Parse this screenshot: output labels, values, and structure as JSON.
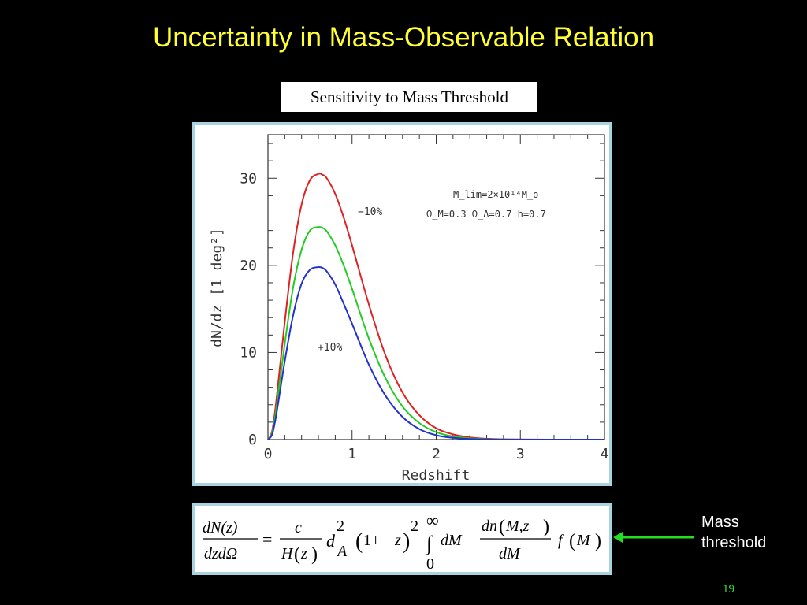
{
  "slide": {
    "title": "Uncertainty in Mass-Observable Relation",
    "subtitle": "Sensitivity to Mass Threshold",
    "page_number": "19",
    "annotation": "Mass threshold",
    "annotation_line1": "Mass",
    "annotation_line2": "threshold"
  },
  "colors": {
    "background": "#000000",
    "title": "#ffff33",
    "frame_border": "#a9d3df",
    "arrow": "#22dd22",
    "page_number": "#33dd33"
  },
  "chart_data": {
    "type": "line",
    "title": "",
    "xlabel": "Redshift",
    "ylabel": "dN/dz [1 deg²]",
    "xlim": [
      0,
      4
    ],
    "ylim": [
      0,
      35
    ],
    "x_ticks": [
      0,
      1,
      2,
      3,
      4
    ],
    "y_ticks": [
      0,
      10,
      20,
      30
    ],
    "grid": false,
    "annotations": {
      "params_line1": "M_lim=2×10¹⁴M_o",
      "params_line2": "Ω_M=0.3  Ω_Λ=0.7  h=0.7"
    },
    "series": [
      {
        "name": "−10%",
        "color": "#dd2222",
        "x": [
          0,
          0.05,
          0.1,
          0.2,
          0.3,
          0.4,
          0.5,
          0.6,
          0.65,
          0.7,
          0.8,
          0.9,
          1.0,
          1.2,
          1.4,
          1.6,
          1.8,
          2.0,
          2.2,
          2.4,
          2.6,
          2.8,
          3.0,
          3.5,
          4.0
        ],
        "values": [
          0,
          1.0,
          4.5,
          13.5,
          21.5,
          27.0,
          29.8,
          30.5,
          30.4,
          30.0,
          28.2,
          25.5,
          22.3,
          15.5,
          9.6,
          5.4,
          2.8,
          1.3,
          0.6,
          0.25,
          0.1,
          0.04,
          0.02,
          0.0,
          0.0
        ]
      },
      {
        "name": "",
        "color": "#22cc22",
        "x": [
          0,
          0.05,
          0.1,
          0.2,
          0.3,
          0.4,
          0.5,
          0.6,
          0.65,
          0.7,
          0.8,
          0.9,
          1.0,
          1.2,
          1.4,
          1.6,
          1.8,
          2.0,
          2.2,
          2.4,
          2.6,
          2.8,
          3.0,
          3.5,
          4.0
        ],
        "values": [
          0,
          0.8,
          3.6,
          11.0,
          17.5,
          21.8,
          24.0,
          24.4,
          24.3,
          23.9,
          22.3,
          20.0,
          17.3,
          11.6,
          7.0,
          3.8,
          1.9,
          0.85,
          0.36,
          0.14,
          0.05,
          0.02,
          0.0,
          0.0,
          0.0
        ]
      },
      {
        "name": "+10%",
        "color": "#2233cc",
        "x": [
          0,
          0.05,
          0.1,
          0.2,
          0.3,
          0.4,
          0.5,
          0.6,
          0.65,
          0.7,
          0.8,
          0.9,
          1.0,
          1.2,
          1.4,
          1.6,
          1.8,
          2.0,
          2.2,
          2.4,
          2.6,
          2.8,
          3.0,
          3.5,
          4.0
        ],
        "values": [
          0,
          0.6,
          2.9,
          9.0,
          14.3,
          17.9,
          19.5,
          19.8,
          19.7,
          19.3,
          17.8,
          15.6,
          13.3,
          8.6,
          5.0,
          2.6,
          1.2,
          0.5,
          0.2,
          0.07,
          0.02,
          0.0,
          0.0,
          0.0,
          0.0
        ]
      }
    ]
  },
  "formula": {
    "lhs_num": "dN(z)",
    "lhs_den": "dzdΩ",
    "equals": "=",
    "c": "c",
    "hz_H": "H",
    "hz_z": "z",
    "dA_d": "d",
    "dA_exp": "2",
    "dA_sub": "A",
    "one_plus": "1+",
    "z2": "z",
    "z2_exp": "2",
    "int_sym": "∫",
    "int_upper": "∞",
    "int_lower": "0",
    "dM": "dM",
    "dn_num": "dn",
    "Mz": "M,z",
    "dn_den": "dM",
    "f": "f",
    "fM": "M"
  }
}
